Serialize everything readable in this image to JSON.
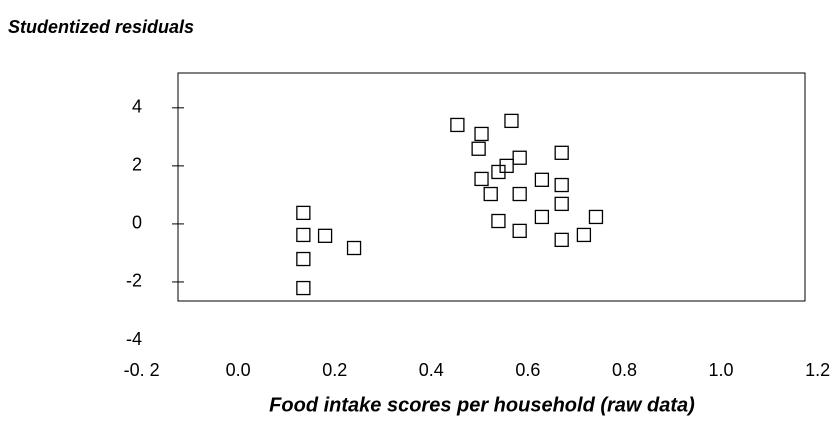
{
  "chart_data": {
    "type": "scatter",
    "y_label": "Studentized residuals",
    "x_label": "Food intake scores per household (raw data)",
    "xlim": [
      -0.2,
      1.2
    ],
    "xticks": [
      {
        "value": -0.2,
        "label": "-0. 2"
      },
      {
        "value": 0,
        "label": "0.0"
      },
      0.2,
      0.4,
      0.6,
      0.8,
      {
        "value": 1,
        "label": "1.0"
      },
      1.2
    ],
    "ylim": [
      -4,
      5.2
    ],
    "yticks": [
      -4,
      -2,
      0,
      2,
      4
    ],
    "color": "#000000",
    "x": [
      0.135,
      0.135,
      0.18,
      0.24,
      0.135,
      0.135,
      0.454,
      0.504,
      0.566,
      0.498,
      0.583,
      0.556,
      0.539,
      0.67,
      0.504,
      0.629,
      0.523,
      0.583,
      0.67,
      0.67,
      0.539,
      0.629,
      0.583,
      0.67,
      0.716,
      0.741
    ],
    "y": [
      0.38,
      -0.38,
      -0.41,
      -0.83,
      -1.21,
      -2.21,
      3.41,
      3.1,
      3.55,
      2.59,
      2.28,
      2.0,
      1.79,
      2.45,
      1.55,
      1.52,
      1.03,
      1.03,
      1.34,
      0.69,
      0.1,
      0.24,
      -0.24,
      -0.55,
      -0.38,
      0.24
    ]
  }
}
